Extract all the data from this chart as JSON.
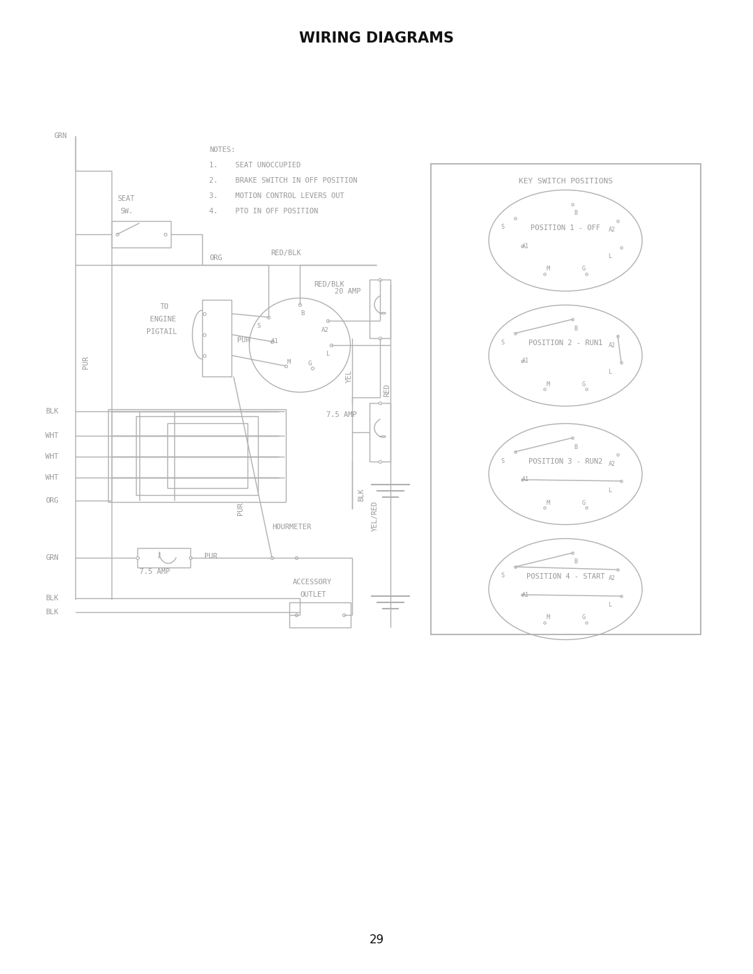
{
  "title": "WIRING DIAGRAMS",
  "page_number": "29",
  "bg_color": "#ffffff",
  "line_color": "#b0b0b0",
  "text_color": "#999999",
  "title_color": "#111111",
  "notes": [
    "NOTES:",
    "1.    SEAT UNOCCUPIED",
    "2.    BRAKE SWITCH IN OFF POSITION",
    "3.    MOTION CONTROL LEVERS OUT",
    "4.    PTO IN OFF POSITION"
  ],
  "key_switch_positions": [
    "POSITION 1 - OFF",
    "POSITION 2 - RUN1",
    "POSITION 3 - RUN2",
    "POSITION 4 - START"
  ]
}
